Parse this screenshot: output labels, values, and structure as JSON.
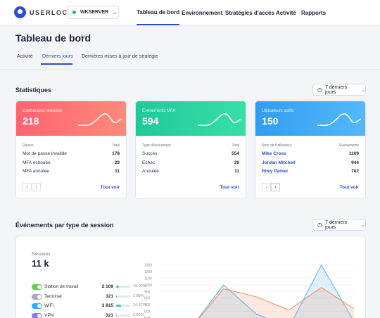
{
  "app": {
    "logo_text": "USERLOCK",
    "server": "WKSERVER"
  },
  "nav": [
    "Tableau de bord",
    "Environnement",
    "Stratégies d'accès",
    "Activité",
    "Rapports"
  ],
  "page": {
    "title": "Tableau de bord"
  },
  "tabs": [
    "Activité",
    "Derniers jours",
    "Dernières mises à jour de stratégie"
  ],
  "stats": {
    "title": "Statistiques",
    "period": "7 derniers jours",
    "cards": [
      {
        "label": "Connexions refusées",
        "value": "218",
        "col_left": "Raison",
        "col_right": "Total",
        "rows": [
          {
            "label": "Mot de passe invalide",
            "value": "178"
          },
          {
            "label": "MFA échouée",
            "value": "29"
          },
          {
            "label": "MFA annulée",
            "value": "11"
          }
        ],
        "see_all": "Tout voir",
        "color": "#ff6f74"
      },
      {
        "label": "Évènements MFA",
        "value": "594",
        "col_left": "Type d'évènement",
        "col_right": "Total",
        "rows": [
          {
            "label": "Succès",
            "value": "554"
          },
          {
            "label": "Echec",
            "value": "29"
          },
          {
            "label": "Annulée",
            "value": "11"
          }
        ],
        "see_all": "Tout voir",
        "color": "#2fd4a0"
      },
      {
        "label": "Utilisateurs actifs",
        "value": "150",
        "col_left": "Nom de l'utilisateur",
        "col_right": "Évènements",
        "rows": [
          {
            "label": "Mike Cross",
            "value": "1109"
          },
          {
            "label": "Jordan Mitchell",
            "value": "944"
          },
          {
            "label": "Riley Parker",
            "value": "702"
          }
        ],
        "see_all": "Tout voir",
        "color": "#3aa9f5"
      }
    ]
  },
  "sessions": {
    "title": "Événements par type de session",
    "period": "7 derniers jours",
    "label": "Sessions",
    "value": "11 k",
    "rows": [
      {
        "label": "Station de travail",
        "value": "2 109",
        "percent": "19.00%",
        "pct": 19.0,
        "color": "#5fcf4a"
      },
      {
        "label": "Terminal",
        "value": "321",
        "percent": "2.89%",
        "pct": 2.89,
        "color": "#a7abb8"
      },
      {
        "label": "WiFi",
        "value": "3 815",
        "percent": "34.37%",
        "pct": 34.37,
        "color": "#3aa9f5"
      },
      {
        "label": "VPN",
        "value": "321",
        "percent": "2.89%",
        "pct": 2.89,
        "color": "#8a7cf0"
      }
    ]
  },
  "chart_data": {
    "type": "area",
    "y_ticks": [
      "1300",
      "1200",
      "1100",
      "1000",
      "900",
      "800",
      "700",
      "600",
      "500",
      "400"
    ],
    "ylim": [
      350,
      1350
    ],
    "x": [
      0,
      1,
      2,
      3,
      4,
      5,
      6
    ],
    "series": [
      {
        "values": [
          350,
          350,
          1000,
          560,
          350,
          1300,
          450
        ],
        "color": "#4fb6f2"
      },
      {
        "values": [
          350,
          350,
          940,
          820,
          620,
          960,
          640
        ],
        "color": "#f08a5d"
      },
      {
        "values": [
          350,
          350,
          380,
          390,
          360,
          420,
          370
        ],
        "color": "#6cc94e"
      }
    ]
  }
}
